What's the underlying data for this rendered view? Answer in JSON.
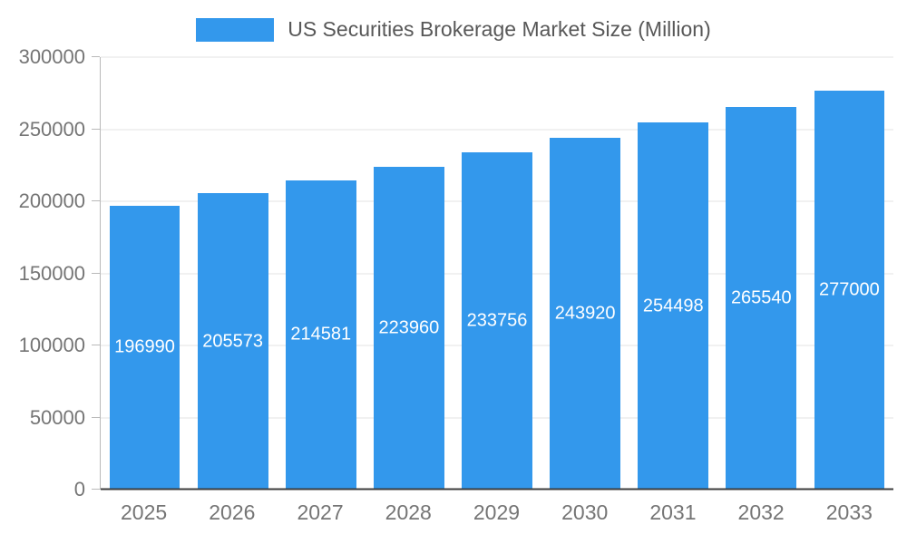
{
  "chart_data": {
    "type": "bar",
    "title": "US Securities Brokerage Market Size (Million)",
    "categories": [
      "2025",
      "2026",
      "2027",
      "2028",
      "2029",
      "2030",
      "2031",
      "2032",
      "2033"
    ],
    "values": [
      196990,
      205573,
      214581,
      223960,
      233756,
      243920,
      254498,
      265540,
      277000
    ],
    "xlabel": "",
    "ylabel": "",
    "ylim": [
      0,
      300000
    ],
    "yticks": [
      0,
      50000,
      100000,
      150000,
      200000,
      250000,
      300000
    ],
    "grid": true,
    "legend_position": "top-center",
    "bar_color": "#3398EC",
    "value_label_color": "#FFFFFF",
    "axis_text_color": "#757575"
  }
}
